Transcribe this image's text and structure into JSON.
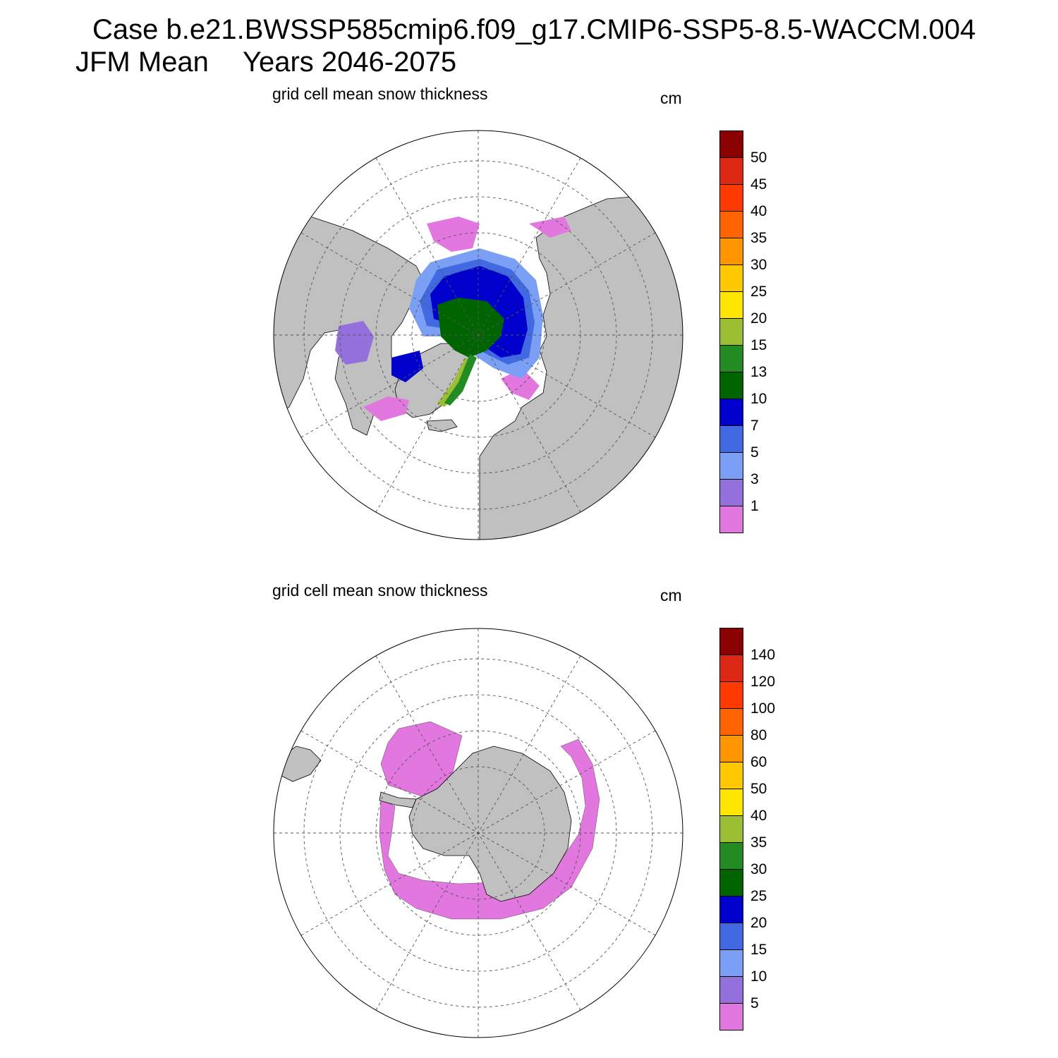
{
  "header": {
    "case_line": "Case b.e21.BWSSP585cmip6.f09_g17.CMIP6-SSP5-8.5-WACCM.004",
    "season": "JFM Mean",
    "years": "Years 2046-2075"
  },
  "panels": [
    {
      "title": "grid cell mean snow thickness",
      "units": "cm",
      "hemisphere": "north",
      "colorbar": {
        "colors": [
          "#8b0000",
          "#dc2814",
          "#ff3a00",
          "#ff6400",
          "#ff9600",
          "#ffc800",
          "#ffe600",
          "#9bbe32",
          "#228b22",
          "#006400",
          "#0000cd",
          "#4169e1",
          "#7b9ff5",
          "#9370db",
          "#e377e0"
        ],
        "labels": [
          "50",
          "45",
          "40",
          "35",
          "30",
          "25",
          "20",
          "15",
          "13",
          "10",
          "7",
          "5",
          "3",
          "1"
        ]
      }
    },
    {
      "title": "grid cell mean snow thickness",
      "units": "cm",
      "hemisphere": "south",
      "colorbar": {
        "colors": [
          "#8b0000",
          "#dc2814",
          "#ff3a00",
          "#ff6400",
          "#ff9600",
          "#ffc800",
          "#ffe600",
          "#9bbe32",
          "#228b22",
          "#006400",
          "#0000cd",
          "#4169e1",
          "#7b9ff5",
          "#9370db",
          "#e377e0"
        ],
        "labels": [
          "140",
          "120",
          "100",
          "80",
          "60",
          "50",
          "40",
          "35",
          "30",
          "25",
          "20",
          "15",
          "10",
          "5"
        ]
      }
    }
  ],
  "map_colors": {
    "land": "#c0c0c0",
    "ocean": "#ffffff",
    "grid": "#555555"
  }
}
